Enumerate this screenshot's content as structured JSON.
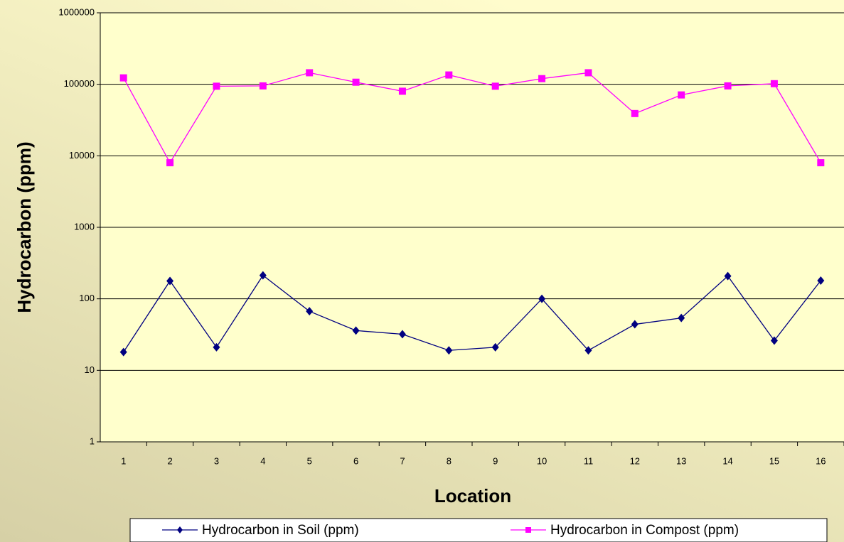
{
  "chart_data": {
    "type": "line",
    "xlabel": "Location",
    "ylabel": "Hydrocarbon (ppm)",
    "categories": [
      "1",
      "2",
      "3",
      "4",
      "5",
      "6",
      "7",
      "8",
      "9",
      "10",
      "11",
      "12",
      "13",
      "14",
      "15",
      "16"
    ],
    "series": [
      {
        "name": "Hydrocarbon in Soil (ppm)",
        "color": "#000080",
        "marker": "diamond",
        "values": [
          18,
          178,
          21,
          213,
          67,
          36,
          32,
          19,
          21,
          100,
          19,
          44,
          54,
          208,
          26,
          180
        ]
      },
      {
        "name": "Hydrocarbon in Compost (ppm)",
        "color": "#ff00ff",
        "marker": "square",
        "values": [
          123000,
          8000,
          94000,
          95000,
          145000,
          107000,
          80000,
          135000,
          94000,
          120000,
          145000,
          39000,
          71000,
          95000,
          102000,
          8000
        ]
      }
    ],
    "ylim": [
      1,
      1000000
    ],
    "yticks": [
      1,
      10,
      100,
      1000,
      10000,
      100000,
      1000000
    ],
    "log_y": true,
    "grid": true,
    "legend": "bottom"
  }
}
